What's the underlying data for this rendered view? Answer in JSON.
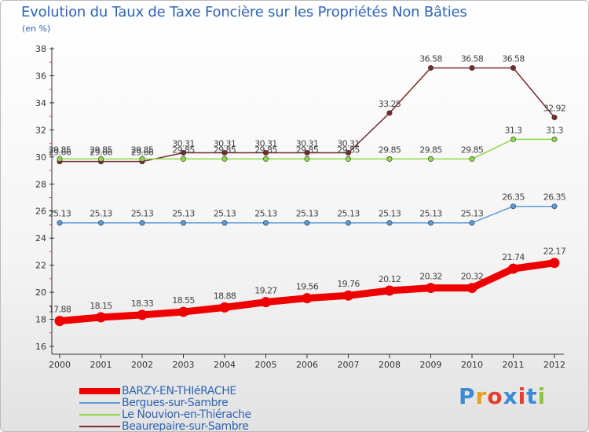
{
  "header": {
    "title": "Evolution du Taux de Taxe Foncière sur les Propriétés Non Bâties",
    "unit": "(en %)"
  },
  "logo": {
    "text": "Proxiti",
    "colors": [
      "#3c8ad6",
      "#e8a020",
      "#e04030",
      "#3c8ad6",
      "#e04030",
      "#3c8ad6",
      "#8cc63e"
    ]
  },
  "chart_data": {
    "type": "line",
    "title": "Evolution du Taux de Taxe Foncière sur les Propriétés Non Bâties",
    "ylabel": "(en %)",
    "xlabel": "",
    "x": [
      "2000",
      "2001",
      "2002",
      "2003",
      "2004",
      "2005",
      "2006",
      "2007",
      "2008",
      "2009",
      "2010",
      "2011",
      "2012"
    ],
    "ylim": [
      16,
      38
    ],
    "yticks": [
      "16",
      "18",
      "20",
      "22",
      "24",
      "26",
      "28",
      "30",
      "32",
      "34",
      "36",
      "38"
    ],
    "grid": false,
    "legend_position": "bottom-left",
    "series": [
      {
        "name": "BARZY-EN-THIéRACHE",
        "color": "#ee0000",
        "values": [
          17.88,
          18.15,
          18.33,
          18.55,
          18.88,
          19.27,
          19.56,
          19.76,
          20.12,
          20.32,
          20.32,
          21.74,
          22.17
        ],
        "labels": [
          "17.88",
          "18.15",
          "18.33",
          "18.55",
          "18.88",
          "19.27",
          "19.56",
          "19.76",
          "20.12",
          "20.32",
          "20.32",
          "21.74",
          "22.17"
        ]
      },
      {
        "name": "Bergues-sur-Sambre",
        "color": "#5b9bd5",
        "values": [
          25.13,
          25.13,
          25.13,
          25.13,
          25.13,
          25.13,
          25.13,
          25.13,
          25.13,
          25.13,
          25.13,
          26.35,
          26.35
        ],
        "labels": [
          "25.13",
          "25.13",
          "25.13",
          "25.13",
          "25.13",
          "25.13",
          "25.13",
          "25.13",
          "25.13",
          "25.13",
          "25.13",
          "26.35",
          "26.35"
        ]
      },
      {
        "name": "Le Nouvion-en-Thiérache",
        "color": "#8ed84a",
        "values": [
          29.85,
          29.85,
          29.85,
          29.85,
          29.85,
          29.85,
          29.85,
          29.85,
          29.85,
          29.85,
          29.85,
          31.3,
          31.3
        ],
        "labels": [
          "29.85",
          "29.85",
          "29.85",
          "29.85",
          "29.85",
          "29.85",
          "29.85",
          "29.85",
          "29.85",
          "29.85",
          "29.85",
          "31.3",
          "31.3"
        ]
      },
      {
        "name": "Beaurepaire-sur-Sambre",
        "color": "#7a2a2a",
        "values": [
          29.66,
          29.66,
          29.66,
          30.31,
          30.31,
          30.31,
          30.31,
          30.31,
          33.25,
          36.58,
          36.58,
          36.58,
          32.92
        ],
        "labels": [
          "29.66",
          "29.66",
          "29.66",
          "30.31",
          "30.31",
          "30.31",
          "30.31",
          "30.31",
          "33.25",
          "36.58",
          "36.58",
          "36.58",
          "32.92"
        ]
      }
    ]
  }
}
